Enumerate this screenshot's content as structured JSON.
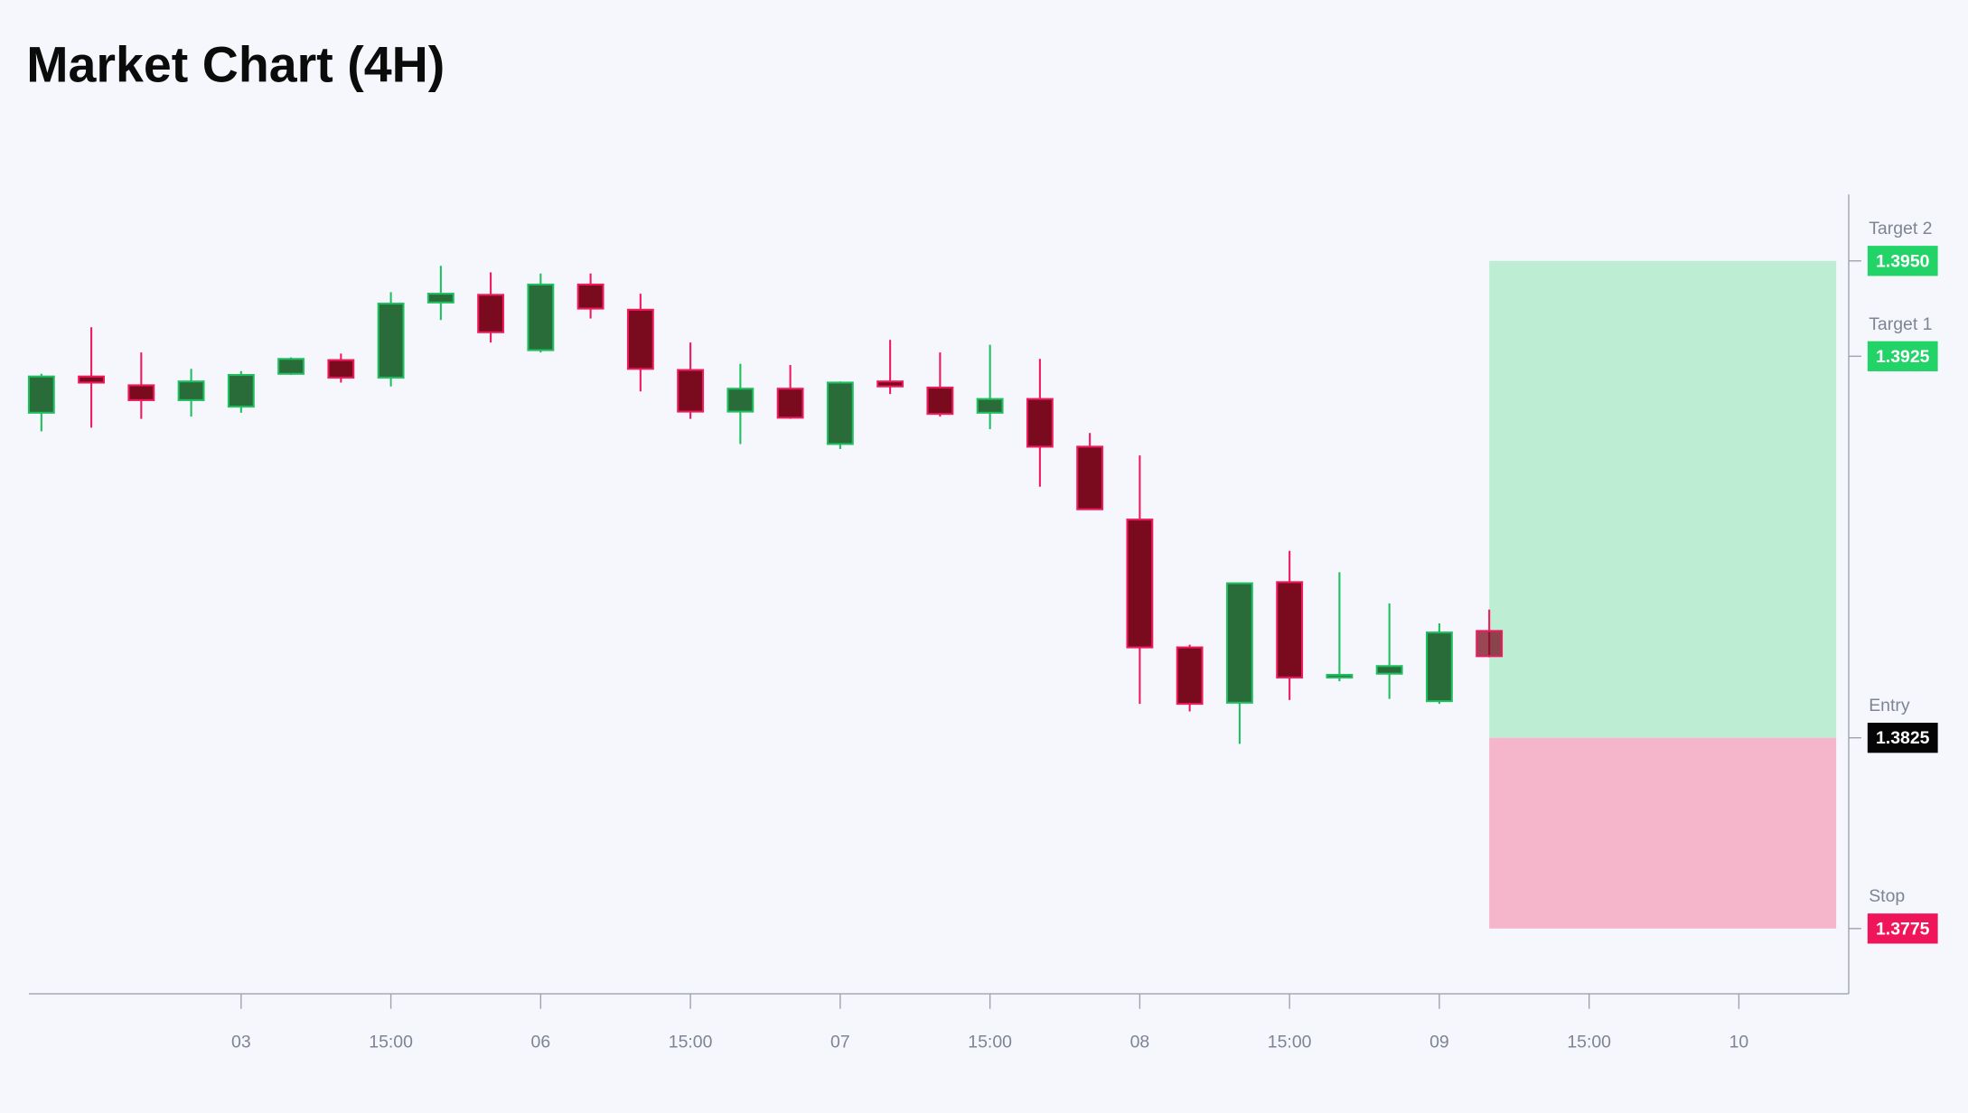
{
  "chart_data": {
    "type": "candlestick",
    "title": "Market Chart (4H)",
    "series": {
      "open": [
        1.39102,
        1.39197,
        1.39174,
        1.39135,
        1.39118,
        1.39204,
        1.3924,
        1.39194,
        1.39391,
        1.39411,
        1.39266,
        1.39438,
        1.39372,
        1.39214,
        1.39105,
        1.39165,
        1.3902,
        1.39184,
        1.39168,
        1.39102,
        1.39138,
        1.39013,
        1.38822,
        1.38487,
        1.38342,
        1.38658,
        1.38408,
        1.38418,
        1.38346,
        1.3853
      ],
      "high": [
        1.39204,
        1.39326,
        1.3926,
        1.39217,
        1.39211,
        1.39247,
        1.39257,
        1.39418,
        1.39487,
        1.3947,
        1.39467,
        1.39467,
        1.39414,
        1.39286,
        1.3923,
        1.39227,
        1.39184,
        1.39293,
        1.3926,
        1.3928,
        1.39243,
        1.39049,
        1.3899,
        1.38494,
        1.38655,
        1.3874,
        1.38684,
        1.38602,
        1.3855,
        1.38586
      ],
      "low": [
        1.39053,
        1.39063,
        1.39086,
        1.39092,
        1.39102,
        1.39201,
        1.39181,
        1.39171,
        1.39345,
        1.39286,
        1.3926,
        1.39349,
        1.39158,
        1.39086,
        1.3902,
        1.39086,
        1.39007,
        1.39151,
        1.39092,
        1.39059,
        1.38908,
        1.38849,
        1.38339,
        1.38319,
        1.38234,
        1.38349,
        1.38398,
        1.38352,
        1.38339,
        1.38461
      ],
      "close": [
        1.39197,
        1.39181,
        1.39135,
        1.39184,
        1.39201,
        1.39243,
        1.39194,
        1.39388,
        1.39414,
        1.39313,
        1.39438,
        1.39375,
        1.39217,
        1.39105,
        1.39165,
        1.39089,
        1.39181,
        1.39171,
        1.39099,
        1.39138,
        1.39013,
        1.38849,
        1.38487,
        1.38339,
        1.38655,
        1.38408,
        1.38415,
        1.38438,
        1.38526,
        1.38464
      ]
    },
    "up_color": "#2a6b3a",
    "up_edge": "#1fbf5f",
    "down_color": "#7a0b1e",
    "down_edge": "#ef1a5c",
    "xlim": [
      -0.25,
      36.2
    ],
    "xticks": [
      {
        "value": 4,
        "label": "03"
      },
      {
        "value": 7,
        "label": "15:00"
      },
      {
        "value": 10,
        "label": "06"
      },
      {
        "value": 13,
        "label": "15:00"
      },
      {
        "value": 16,
        "label": "07"
      },
      {
        "value": 19,
        "label": "15:00"
      },
      {
        "value": 22,
        "label": "08"
      },
      {
        "value": 25,
        "label": "15:00"
      },
      {
        "value": 28,
        "label": "09"
      },
      {
        "value": 31,
        "label": "15:00"
      },
      {
        "value": 34,
        "label": "10"
      }
    ],
    "ylim": [
      1.37579,
      1.39674
    ],
    "yticks": [
      {
        "value": 1.395,
        "label": "1.3950"
      },
      {
        "value": 1.3925,
        "label": "1.3925"
      },
      {
        "value": 1.3825,
        "label": "1.3825"
      },
      {
        "value": 1.3775,
        "label": "1.3775"
      }
    ],
    "level_names": [
      "Target 2",
      "Target 1",
      "Entry",
      "Stop"
    ],
    "level_colors": [
      "#22d367",
      "#22d367",
      "#050505",
      "#f0145a"
    ],
    "profit_color": "#bdeed3",
    "loss_color": "#f5b5cb"
  }
}
